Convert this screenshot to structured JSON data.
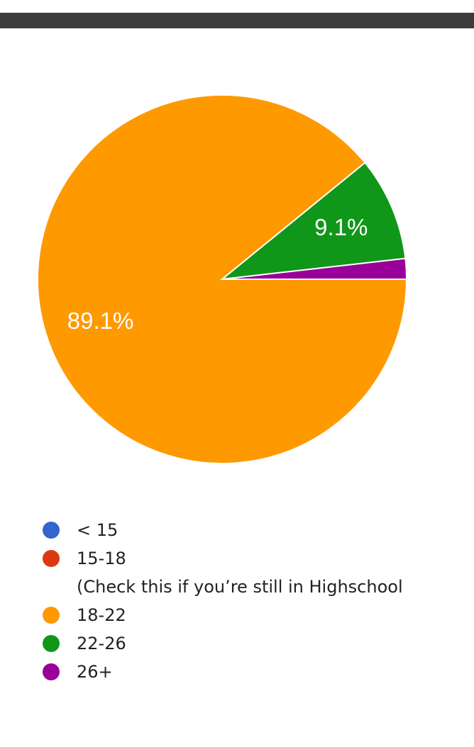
{
  "chart_data": {
    "type": "pie",
    "categories": [
      "< 15",
      "15-18\n(Check this if you’re still in Highschool",
      "18-22",
      "22-26",
      "26+"
    ],
    "values": [
      0,
      0,
      89.1,
      9.1,
      1.8
    ],
    "value_labels": [
      null,
      null,
      "89.1%",
      "9.1%",
      null
    ],
    "colors": [
      "#3366cc",
      "#dc3912",
      "#ff9900",
      "#109618",
      "#990099"
    ]
  }
}
